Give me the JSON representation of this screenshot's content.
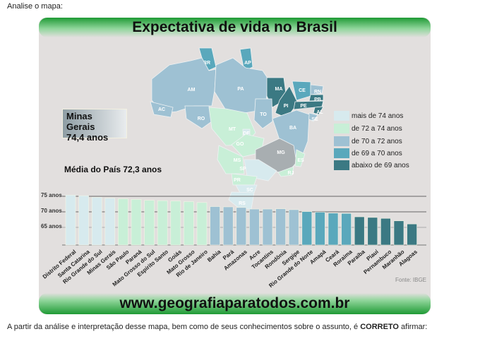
{
  "intro": "Analise o mapa:",
  "infographic": {
    "title": "Expectativa de vida no Brasil",
    "highlight": {
      "state": "Minas Gerais",
      "value": "74,4 anos"
    },
    "average": "Média do País 72,3 anos",
    "legend": [
      {
        "label": "mais de 74 anos",
        "color": "#d7eaee"
      },
      {
        "label": "de 72 a 74 anos",
        "color": "#c8efd7"
      },
      {
        "label": "de 70 a 72 anos",
        "color": "#9ec1d3"
      },
      {
        "label": "de 69 a 70 anos",
        "color": "#5aa8bc"
      },
      {
        "label": "abaixo de 69 anos",
        "color": "#3b7983"
      }
    ],
    "map_states": [
      "RR",
      "AP",
      "AM",
      "PA",
      "MA",
      "CE",
      "RN",
      "PB",
      "PI",
      "PE",
      "AL",
      "SE",
      "AC",
      "RO",
      "TO",
      "BA",
      "MT",
      "DF",
      "GO",
      "MG",
      "MS",
      "SP",
      "ES",
      "RJ",
      "PR",
      "SC",
      "RS"
    ],
    "source": "Fonte: IBGE",
    "footer": "www.geografiaparatodos.com.br"
  },
  "chart_data": {
    "type": "bar",
    "ylabels": [
      "75 anos",
      "70 anos",
      "65 anos"
    ],
    "yticks": [
      75,
      70,
      65
    ],
    "ylim": [
      59.5,
      76
    ],
    "categories": [
      "Distrito Federal",
      "Santa Catarina",
      "Rio Grande do Sul",
      "Minas Gerais",
      "São Paulo",
      "Paraná",
      "Mato Grosso do Sul",
      "Espírito Santo",
      "Goiás",
      "Mato Grosso",
      "Rio de Janeiro",
      "Bahia",
      "Pará",
      "Amazonas",
      "Acre",
      "Tocantins",
      "Rondônia",
      "Sergipe",
      "Rio Grande do Norte",
      "Amapá",
      "Ceará",
      "Roraima",
      "Paraíba",
      "Piauí",
      "Pernambuco",
      "Maranhão",
      "Alagoas"
    ],
    "values": [
      75.4,
      75.2,
      74.7,
      74.4,
      74.2,
      74.0,
      73.7,
      73.6,
      73.5,
      73.3,
      73.0,
      71.7,
      71.6,
      71.4,
      70.9,
      70.9,
      71.0,
      70.7,
      70.1,
      69.9,
      69.6,
      69.5,
      68.4,
      68.2,
      67.9,
      67.1,
      66.1
    ]
  },
  "question": {
    "text": "A partir da análise e interpretação desse mapa, bem como de seus conhecimentos sobre o assunto, é ",
    "bold": "CORRETO",
    "end": " afirmar:"
  }
}
